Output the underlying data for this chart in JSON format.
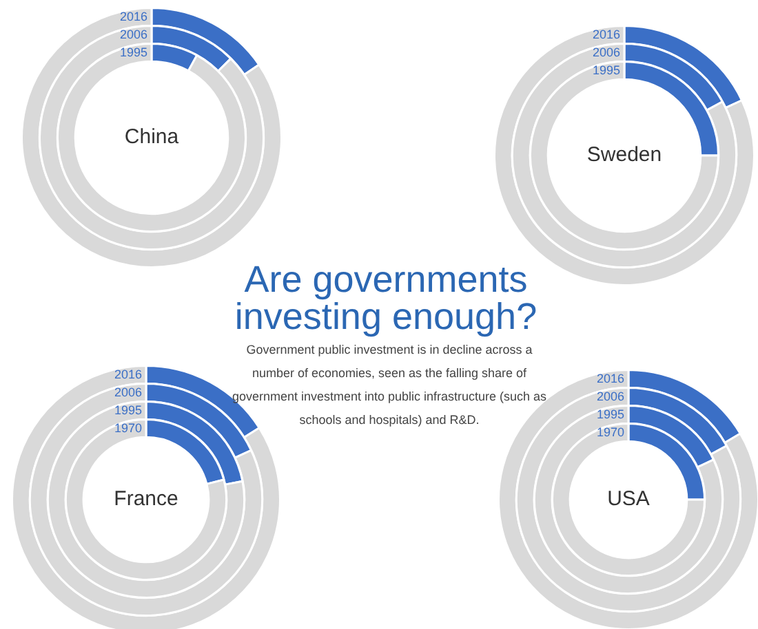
{
  "chart_data": [
    {
      "type": "donut",
      "title": "2016",
      "annotations": [
        "China"
      ],
      "categories": [
        null,
        null
      ],
      "colors": [
        "#3b6fc6",
        "#d9d9d9"
      ],
      "values": [
        15.5,
        84.5
      ]
    },
    {
      "type": "donut",
      "title": "2006",
      "categories": [
        null,
        null
      ],
      "colors": [
        "#3b6fc6",
        "#d9d9d9"
      ],
      "values": [
        12.5,
        87.5
      ]
    },
    {
      "type": "donut",
      "title": "1995",
      "categories": [
        null,
        null
      ],
      "colors": [
        "#3b6fc6",
        "#d9d9d9"
      ],
      "values": [
        8,
        92
      ]
    },
    {
      "type": "donut",
      "title": "2016",
      "annotations": [
        "Sweden"
      ],
      "categories": [
        null,
        null
      ],
      "colors": [
        "#3b6fc6",
        "#d9d9d9"
      ],
      "values": [
        18,
        82
      ]
    },
    {
      "type": "donut",
      "title": "2006",
      "categories": [
        null,
        null
      ],
      "colors": [
        "#3b6fc6",
        "#d9d9d9"
      ],
      "values": [
        17,
        83
      ]
    },
    {
      "type": "donut",
      "title": "1995",
      "categories": [
        null,
        null
      ],
      "colors": [
        "#3b6fc6",
        "#d9d9d9"
      ],
      "values": [
        25,
        75
      ]
    },
    {
      "type": "other",
      "title": "Are governments investing enough?",
      "subtitle": "Government public investment is in decline across a number of economies, seen as the falling share of government investment into public infrastructure (such as schools and hospitals) and R&D."
    },
    {
      "type": "donut",
      "title": "2016",
      "annotations": [
        "France"
      ],
      "categories": [
        null,
        null
      ],
      "colors": [
        "#3b6fc6",
        "#d9d9d9"
      ],
      "values": [
        16,
        84
      ]
    },
    {
      "type": "donut",
      "title": "2006",
      "categories": [
        null,
        null
      ],
      "colors": [
        "#3b6fc6",
        "#d9d9d9"
      ],
      "values": [
        18,
        82
      ]
    },
    {
      "type": "donut",
      "title": "1995",
      "categories": [
        null,
        null
      ],
      "colors": [
        "#3b6fc6",
        "#d9d9d9"
      ],
      "values": [
        22,
        78
      ]
    },
    {
      "type": "donut",
      "title": "1970",
      "categories": [
        null,
        null
      ],
      "colors": [
        "#3b6fc6",
        "#d9d9d9"
      ],
      "values": [
        21,
        79
      ]
    },
    {
      "type": "donut",
      "title": "2016",
      "annotations": [
        "USA"
      ],
      "categories": [
        null,
        null
      ],
      "colors": [
        "#3b6fc6",
        "#d9d9d9"
      ],
      "values": [
        16.5,
        83.5
      ]
    },
    {
      "type": "donut",
      "title": "2006",
      "categories": [
        null,
        null
      ],
      "colors": [
        "#3b6fc6",
        "#d9d9d9"
      ],
      "values": [
        17,
        83
      ]
    },
    {
      "type": "donut",
      "title": "1995",
      "categories": [
        null,
        null
      ],
      "colors": [
        "#3b6fc6",
        "#d9d9d9"
      ],
      "values": [
        18,
        82
      ]
    },
    {
      "type": "donut",
      "title": "1970",
      "categories": [
        null,
        null
      ],
      "colors": [
        "#3b6fc6",
        "#d9d9d9"
      ],
      "values": [
        25,
        75
      ]
    }
  ]
}
